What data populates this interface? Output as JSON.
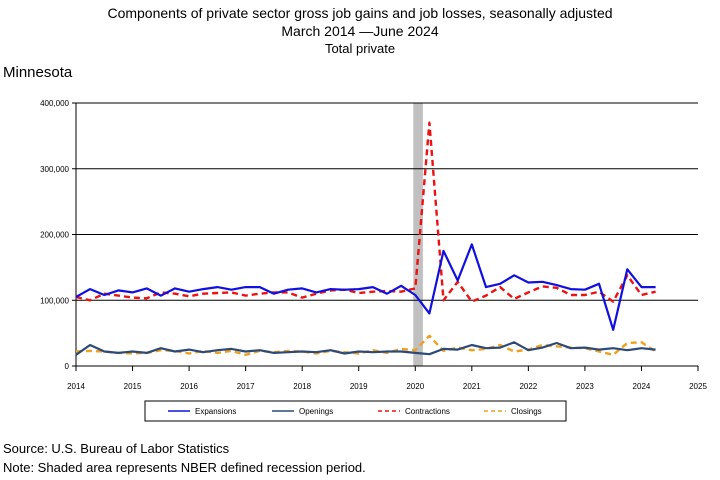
{
  "header": {
    "title": "Components of private sector gross job gains and job losses, seasonally adjusted",
    "range": "March 2014 —June 2024",
    "subtitle": "Total private",
    "state": "Minnesota"
  },
  "footer": {
    "source": "Source: U.S. Bureau of Labor Statistics",
    "note": "Note: Shaded area represents NBER defined recession period."
  },
  "colors": {
    "expansions": "#1010e0",
    "openings": "#2b4a7a",
    "contractions": "#ee1111",
    "closings": "#f0a020",
    "recession": "#c0c0c0"
  },
  "chart_data": {
    "type": "line",
    "title": "Components of private sector gross job gains and job losses, seasonally adjusted",
    "xlim": [
      2014,
      2025
    ],
    "ylim": [
      0,
      400000
    ],
    "x_ticks": [
      "2014",
      "2015",
      "2016",
      "2017",
      "2018",
      "2019",
      "2020",
      "2021",
      "2022",
      "2023",
      "2024",
      "2025"
    ],
    "y_ticks": [
      "0",
      "100,000",
      "200,000",
      "300,000",
      "400,000"
    ],
    "grid": "horizontal",
    "legend_position": "bottom",
    "recession": [
      2020.0,
      2020.17
    ],
    "x": [
      2014.0,
      2014.25,
      2014.5,
      2014.75,
      2015.0,
      2015.25,
      2015.5,
      2015.75,
      2016.0,
      2016.25,
      2016.5,
      2016.75,
      2017.0,
      2017.25,
      2017.5,
      2017.75,
      2018.0,
      2018.25,
      2018.5,
      2018.75,
      2019.0,
      2019.25,
      2019.5,
      2019.75,
      2020.0,
      2020.25,
      2020.5,
      2020.75,
      2021.0,
      2021.25,
      2021.5,
      2021.75,
      2022.0,
      2022.25,
      2022.5,
      2022.75,
      2023.0,
      2023.25,
      2023.5,
      2023.75,
      2024.0,
      2024.25
    ],
    "series": [
      {
        "name": "Expansions",
        "style": "solid-thick",
        "values": [
          105000,
          117000,
          108000,
          115000,
          112000,
          118000,
          107000,
          118000,
          113000,
          117000,
          120000,
          116000,
          120000,
          120000,
          110000,
          116000,
          118000,
          112000,
          117000,
          116000,
          117000,
          120000,
          110000,
          122000,
          108000,
          80000,
          175000,
          130000,
          185000,
          120000,
          125000,
          138000,
          127000,
          128000,
          123000,
          117000,
          116000,
          125000,
          55000,
          147000,
          120000,
          120000
        ]
      },
      {
        "name": "Openings",
        "style": "solid-thin",
        "values": [
          17000,
          32000,
          22000,
          20000,
          22000,
          20000,
          27000,
          22000,
          25000,
          21000,
          24000,
          26000,
          22000,
          24000,
          20000,
          21000,
          22000,
          21000,
          24000,
          19000,
          22000,
          21000,
          22000,
          22000,
          20000,
          18000,
          26000,
          25000,
          32000,
          27000,
          28000,
          36000,
          24000,
          28000,
          35000,
          27000,
          28000,
          25000,
          27000,
          24000,
          27000,
          25000
        ]
      },
      {
        "name": "Contractions",
        "style": "dashed",
        "values": [
          105000,
          100000,
          110000,
          107000,
          104000,
          103000,
          112000,
          110000,
          106000,
          110000,
          111000,
          112000,
          107000,
          110000,
          112000,
          112000,
          104000,
          110000,
          115000,
          116000,
          111000,
          113000,
          114000,
          113000,
          118000,
          370000,
          100000,
          128000,
          98000,
          107000,
          120000,
          102000,
          112000,
          121000,
          119000,
          108000,
          108000,
          113000,
          98000,
          138000,
          108000,
          113000
        ]
      },
      {
        "name": "Closings",
        "style": "dashed",
        "values": [
          22000,
          23000,
          22000,
          20000,
          19000,
          20000,
          24000,
          23000,
          19000,
          23000,
          20000,
          23000,
          17000,
          23000,
          21000,
          23000,
          22000,
          19000,
          23000,
          21000,
          19000,
          24000,
          20000,
          26000,
          24000,
          46000,
          23000,
          28000,
          24000,
          26000,
          32000,
          22000,
          25000,
          32000,
          30000,
          28000,
          27000,
          22000,
          17000,
          35000,
          36000,
          22000
        ]
      }
    ]
  }
}
